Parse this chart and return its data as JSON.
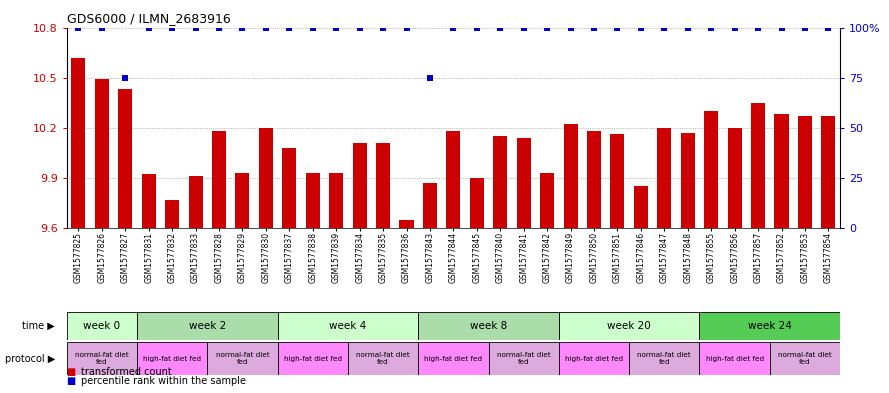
{
  "title": "GDS6000 / ILMN_2683916",
  "samples": [
    "GSM1577825",
    "GSM1577826",
    "GSM1577827",
    "GSM1577831",
    "GSM1577832",
    "GSM1577833",
    "GSM1577828",
    "GSM1577829",
    "GSM1577830",
    "GSM1577837",
    "GSM1577838",
    "GSM1577839",
    "GSM1577834",
    "GSM1577835",
    "GSM1577836",
    "GSM1577843",
    "GSM1577844",
    "GSM1577845",
    "GSM1577840",
    "GSM1577841",
    "GSM1577842",
    "GSM1577849",
    "GSM1577850",
    "GSM1577851",
    "GSM1577846",
    "GSM1577847",
    "GSM1577848",
    "GSM1577855",
    "GSM1577856",
    "GSM1577857",
    "GSM1577852",
    "GSM1577853",
    "GSM1577854"
  ],
  "bar_values": [
    10.62,
    10.49,
    10.43,
    9.92,
    9.77,
    9.91,
    10.18,
    9.93,
    10.2,
    10.08,
    9.93,
    9.93,
    10.11,
    10.11,
    9.65,
    9.87,
    10.18,
    9.9,
    10.15,
    10.14,
    9.93,
    10.22,
    10.18,
    10.16,
    9.85,
    10.2,
    10.17,
    10.3,
    10.2,
    10.35,
    10.28,
    10.27,
    10.27
  ],
  "percentile_values": [
    100,
    100,
    75,
    100,
    100,
    100,
    100,
    100,
    100,
    100,
    100,
    100,
    100,
    100,
    100,
    75,
    100,
    100,
    100,
    100,
    100,
    100,
    100,
    100,
    100,
    100,
    100,
    100,
    100,
    100,
    100,
    100,
    100
  ],
  "ylim_left": [
    9.6,
    10.8
  ],
  "ylim_right": [
    0,
    100
  ],
  "yticks_left": [
    9.6,
    9.9,
    10.2,
    10.5,
    10.8
  ],
  "yticks_right": [
    0,
    25,
    50,
    75,
    100
  ],
  "bar_color": "#cc0000",
  "dot_color": "#0000cc",
  "time_groups": [
    {
      "label": "week 0",
      "start": 0,
      "end": 3
    },
    {
      "label": "week 2",
      "start": 3,
      "end": 9
    },
    {
      "label": "week 4",
      "start": 9,
      "end": 15
    },
    {
      "label": "week 8",
      "start": 15,
      "end": 21
    },
    {
      "label": "week 20",
      "start": 21,
      "end": 27
    },
    {
      "label": "week 24",
      "start": 27,
      "end": 33
    }
  ],
  "time_colors": [
    "#ccffcc",
    "#aaddaa",
    "#ccffcc",
    "#aaddaa",
    "#ccffcc",
    "#55cc55"
  ],
  "protocol_groups": [
    {
      "label": "normal-fat diet\nfed",
      "start": 0,
      "end": 3
    },
    {
      "label": "high-fat diet fed",
      "start": 3,
      "end": 6
    },
    {
      "label": "normal-fat diet\nfed",
      "start": 6,
      "end": 9
    },
    {
      "label": "high-fat diet fed",
      "start": 9,
      "end": 12
    },
    {
      "label": "normal-fat diet\nfed",
      "start": 12,
      "end": 15
    },
    {
      "label": "high-fat diet fed",
      "start": 15,
      "end": 18
    },
    {
      "label": "normal-fat diet\nfed",
      "start": 18,
      "end": 21
    },
    {
      "label": "high-fat diet fed",
      "start": 21,
      "end": 24
    },
    {
      "label": "normal-fat diet\nfed",
      "start": 24,
      "end": 27
    },
    {
      "label": "high-fat diet fed",
      "start": 27,
      "end": 30
    },
    {
      "label": "normal-fat diet\nfed",
      "start": 30,
      "end": 33
    }
  ],
  "proto_color_normal": "#ddaadd",
  "proto_color_high": "#ff88ff",
  "legend_bar_label": "transformed count",
  "legend_dot_label": "percentile rank within the sample",
  "bg_color": "#ffffff"
}
